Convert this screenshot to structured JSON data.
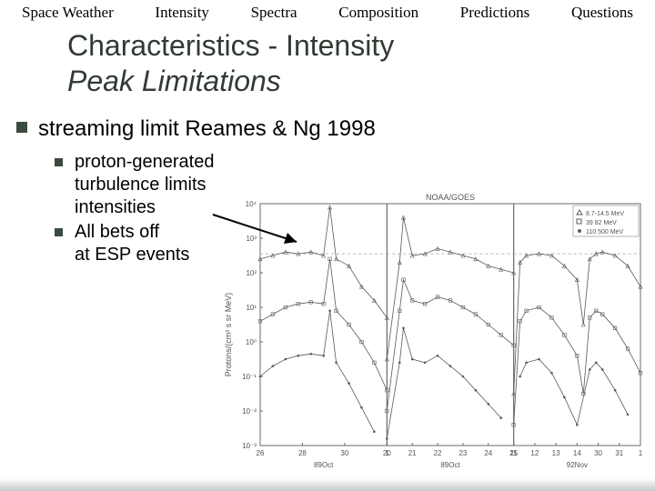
{
  "nav": {
    "items": [
      "Space Weather",
      "Intensity",
      "Spectra",
      "Composition",
      "Predictions",
      "Questions"
    ]
  },
  "title": {
    "line1": "Characteristics - Intensity",
    "line2": "Peak Limitations"
  },
  "bullets": {
    "main": "streaming limit  Reames & Ng 1998",
    "sub1_l1": "proton-generated",
    "sub1_l2": "turbulence limits",
    "sub1_l3": "intensities",
    "sub2_l1": "All bets off",
    "sub2_l2": "at ESP events"
  },
  "chart": {
    "type": "line",
    "panel_count": 3,
    "header": "NOAA/GOES",
    "ylabel": "Protons/(cm² s sr MeV)",
    "ylim": [
      -3,
      4
    ],
    "yticks": [
      "10⁻³",
      "10⁻²",
      "10⁻¹",
      "10⁰",
      "10¹",
      "10²",
      "10³",
      "10⁴"
    ],
    "legend_items": [
      {
        "marker": "triangle",
        "label": "8.7-14.5 MeV"
      },
      {
        "marker": "square",
        "label": "39  82  MeV"
      },
      {
        "marker": "dot",
        "label": "110 500 MeV"
      }
    ],
    "panels": [
      {
        "xticks": [
          "26",
          "28",
          "30",
          "1"
        ],
        "xsub": "89Oct",
        "series1": [
          [
            0,
            2.4
          ],
          [
            1,
            2.5
          ],
          [
            2,
            2.6
          ],
          [
            3,
            2.55
          ],
          [
            4,
            2.6
          ],
          [
            5,
            2.5
          ],
          [
            5.5,
            3.9
          ],
          [
            6,
            2.4
          ],
          [
            7,
            2.2
          ],
          [
            8,
            1.6
          ],
          [
            9,
            1.2
          ],
          [
            10,
            0.7
          ]
        ],
        "series2": [
          [
            0,
            0.6
          ],
          [
            1,
            0.8
          ],
          [
            2,
            1.0
          ],
          [
            3,
            1.1
          ],
          [
            4,
            1.15
          ],
          [
            5,
            1.1
          ],
          [
            5.5,
            2.4
          ],
          [
            6,
            0.9
          ],
          [
            7,
            0.5
          ],
          [
            8,
            0.0
          ],
          [
            9,
            -0.6
          ],
          [
            10,
            -1.4
          ]
        ],
        "series3": [
          [
            0,
            -1.0
          ],
          [
            1,
            -0.7
          ],
          [
            2,
            -0.5
          ],
          [
            3,
            -0.4
          ],
          [
            4,
            -0.35
          ],
          [
            5,
            -0.4
          ],
          [
            5.5,
            0.9
          ],
          [
            6,
            -0.6
          ],
          [
            7,
            -1.2
          ],
          [
            8,
            -1.9
          ],
          [
            9,
            -2.6
          ]
        ]
      },
      {
        "xticks": [
          "20",
          "21",
          "22",
          "23",
          "24",
          "25"
        ],
        "xsub": "89Oct",
        "series1": [
          [
            0,
            -0.5
          ],
          [
            1,
            2.3
          ],
          [
            1.3,
            3.6
          ],
          [
            2,
            2.5
          ],
          [
            3,
            2.55
          ],
          [
            4,
            2.7
          ],
          [
            5,
            2.6
          ],
          [
            6,
            2.5
          ],
          [
            7,
            2.4
          ],
          [
            8,
            2.2
          ],
          [
            9,
            2.1
          ],
          [
            10,
            2.0
          ]
        ],
        "series2": [
          [
            0,
            -2.0
          ],
          [
            1,
            0.9
          ],
          [
            1.3,
            1.8
          ],
          [
            2,
            1.2
          ],
          [
            3,
            1.1
          ],
          [
            4,
            1.3
          ],
          [
            5,
            1.2
          ],
          [
            6,
            1.0
          ],
          [
            7,
            0.8
          ],
          [
            8,
            0.5
          ],
          [
            9,
            0.2
          ],
          [
            10,
            -0.1
          ]
        ],
        "series3": [
          [
            0,
            -2.8
          ],
          [
            1,
            -0.6
          ],
          [
            1.3,
            0.4
          ],
          [
            2,
            -0.5
          ],
          [
            3,
            -0.6
          ],
          [
            4,
            -0.4
          ],
          [
            5,
            -0.7
          ],
          [
            6,
            -1.0
          ],
          [
            7,
            -1.4
          ],
          [
            8,
            -1.8
          ],
          [
            9,
            -2.2
          ]
        ]
      },
      {
        "xticks": [
          "11",
          "12",
          "13",
          "14",
          "30",
          "31",
          "1"
        ],
        "xsub": "92Nov",
        "series1": [
          [
            0,
            -1.5
          ],
          [
            0.5,
            2.3
          ],
          [
            1,
            2.5
          ],
          [
            2,
            2.55
          ],
          [
            3,
            2.5
          ],
          [
            4,
            2.2
          ],
          [
            5,
            1.8
          ],
          [
            5.5,
            0.5
          ],
          [
            6,
            2.4
          ],
          [
            6.5,
            2.55
          ],
          [
            7,
            2.6
          ],
          [
            8,
            2.5
          ],
          [
            9,
            2.2
          ],
          [
            10,
            1.6
          ]
        ],
        "series2": [
          [
            0,
            -2.4
          ],
          [
            0.5,
            0.6
          ],
          [
            1,
            0.9
          ],
          [
            2,
            1.0
          ],
          [
            3,
            0.7
          ],
          [
            4,
            0.2
          ],
          [
            5,
            -0.4
          ],
          [
            5.5,
            -1.5
          ],
          [
            6,
            0.7
          ],
          [
            6.5,
            0.9
          ],
          [
            7,
            0.8
          ],
          [
            8,
            0.4
          ],
          [
            9,
            -0.2
          ],
          [
            10,
            -0.9
          ]
        ],
        "series3": [
          [
            0.5,
            -1.0
          ],
          [
            1,
            -0.6
          ],
          [
            2,
            -0.5
          ],
          [
            3,
            -0.9
          ],
          [
            4,
            -1.6
          ],
          [
            5,
            -2.4
          ],
          [
            6,
            -0.8
          ],
          [
            6.5,
            -0.6
          ],
          [
            7,
            -0.8
          ],
          [
            8,
            -1.4
          ],
          [
            9,
            -2.1
          ]
        ]
      }
    ],
    "colors": {
      "axis": "#6a6a6a",
      "series": "#5a5a5a",
      "grid": "#b8b8b8",
      "text": "#555555"
    },
    "streaming_limit_y": 2.55
  }
}
